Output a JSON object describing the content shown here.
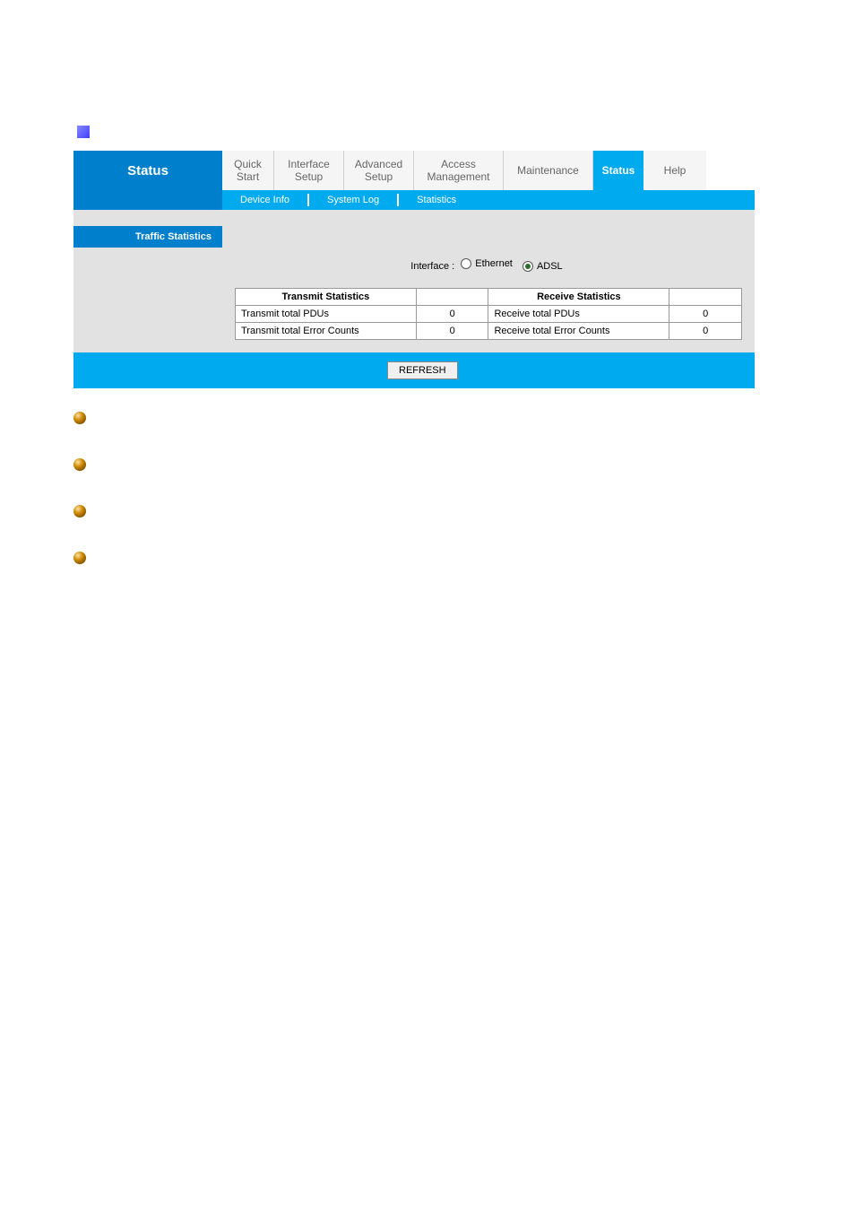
{
  "page_title": "Status",
  "nav": {
    "quick_start": "Quick Start",
    "interface_setup": "Interface Setup",
    "advanced_setup": "Advanced Setup",
    "access_management": "Access Management",
    "maintenance": "Maintenance",
    "status": "Status",
    "help": "Help"
  },
  "subnav": {
    "device_info": "Device Info",
    "system_log": "System Log",
    "statistics": "Statistics"
  },
  "section_title": "Traffic Statistics",
  "interface_label": "Interface :",
  "radio_ethernet": "Ethernet",
  "radio_adsl": "ADSL",
  "selected_interface": "ADSL",
  "table": {
    "transmit_header": "Transmit Statistics",
    "receive_header": "Receive Statistics",
    "rows": [
      {
        "tx_label": "Transmit total PDUs",
        "tx_val": "0",
        "rx_label": "Receive total PDUs",
        "rx_val": "0"
      },
      {
        "tx_label": "Transmit total Error Counts",
        "tx_val": "0",
        "rx_label": "Receive total Error Counts",
        "rx_val": "0"
      }
    ]
  },
  "refresh_label": "REFRESH",
  "colors": {
    "primary_blue": "#007fcc",
    "light_blue": "#00aaee",
    "bg_gray": "#e2e2e2",
    "nav_bg": "#f5f5f5",
    "nav_text": "#666666"
  }
}
